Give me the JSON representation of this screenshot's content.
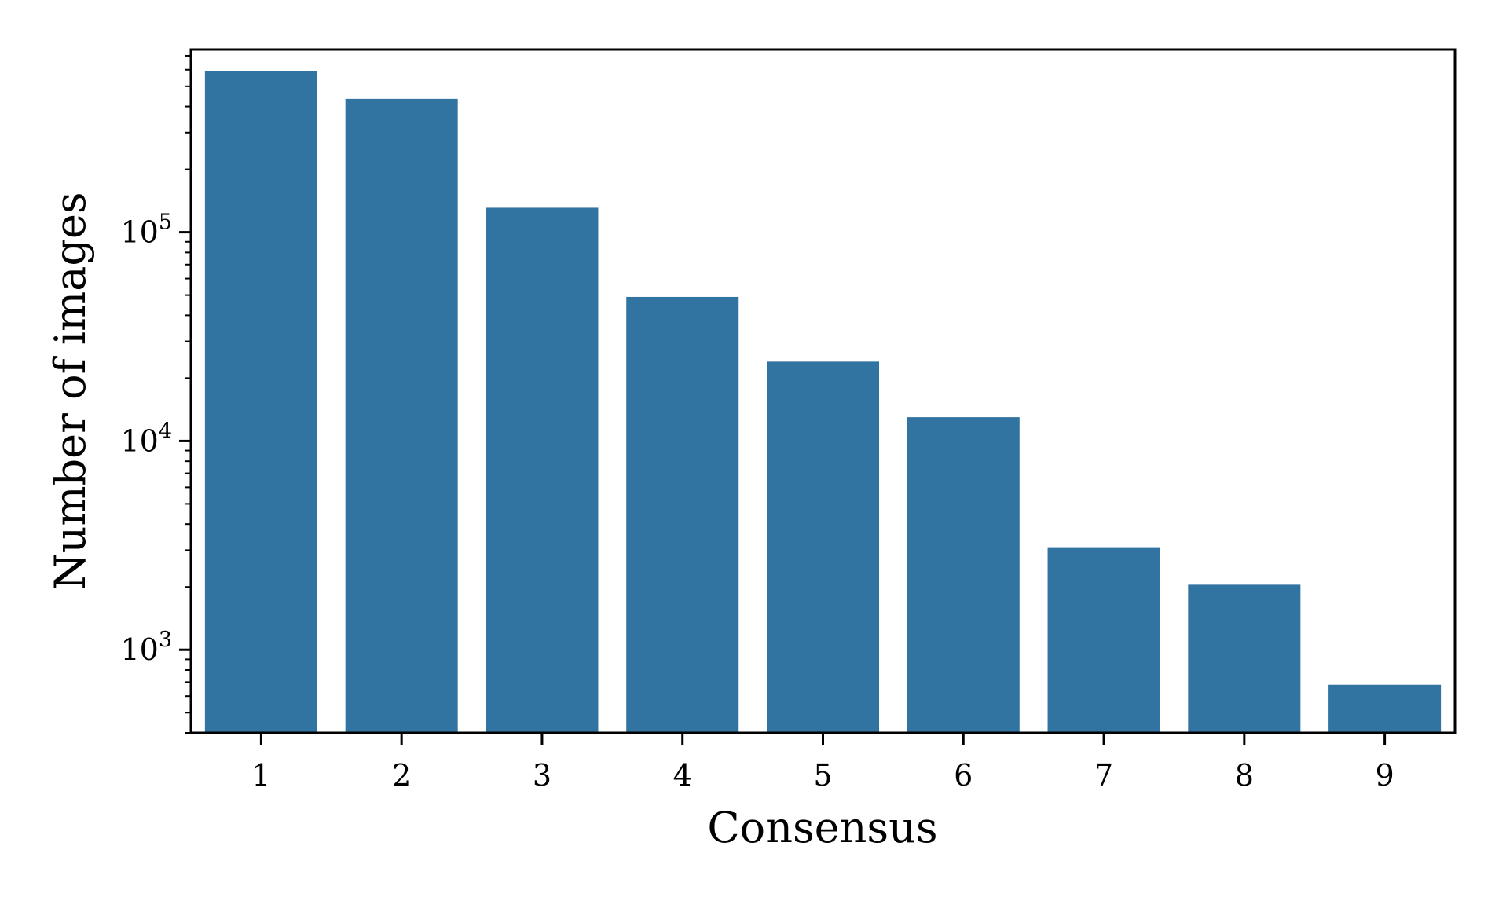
{
  "chart_data": {
    "type": "bar",
    "xlabel": "Consensus",
    "ylabel": "Number of images",
    "y_scale": "log",
    "ylim": [
      400,
      750000
    ],
    "categories": [
      "1",
      "2",
      "3",
      "4",
      "5",
      "6",
      "7",
      "8",
      "9"
    ],
    "values": [
      590000,
      435000,
      131000,
      49000,
      24000,
      13000,
      3100,
      2050,
      680
    ],
    "y_tick_values": [
      1000,
      10000,
      100000
    ],
    "y_tick_labels": [
      {
        "base": "10",
        "exp": "3"
      },
      {
        "base": "10",
        "exp": "4"
      },
      {
        "base": "10",
        "exp": "5"
      }
    ],
    "bar_color": "#3274a1",
    "grid": false,
    "legend": "none"
  }
}
